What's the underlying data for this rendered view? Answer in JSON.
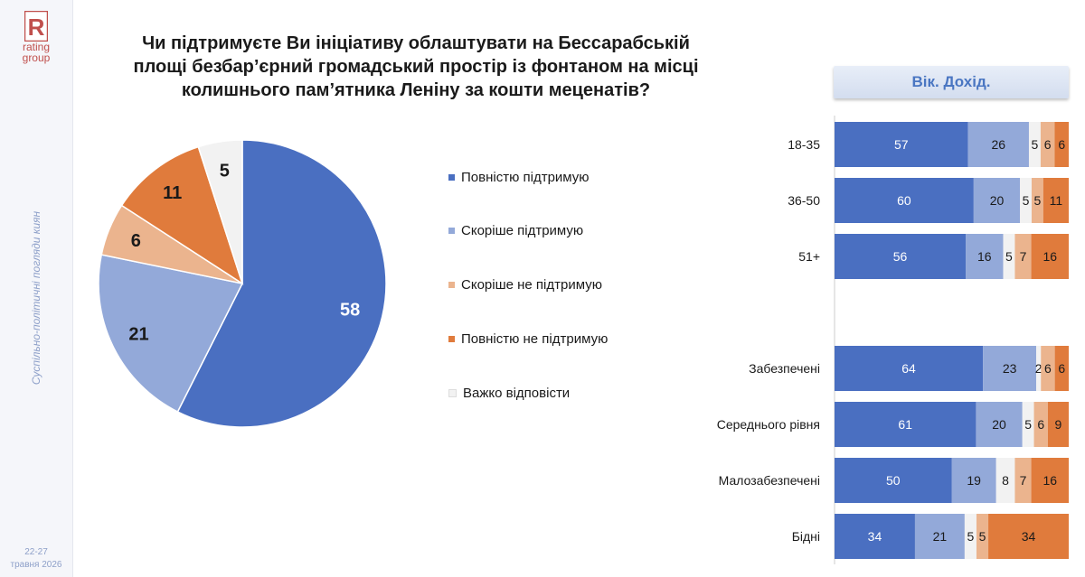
{
  "sidebar": {
    "logo_letter": "R",
    "logo_line1": "rating",
    "logo_line2": "group",
    "vertical_text": "Суспільно-політичні погляди киян",
    "date_line1": "22-27",
    "date_line2": "травня 2026"
  },
  "title_lines": [
    "Чи підтримуєте Ви ініціативу облаштувати на Бессарабській",
    "площі безбар’єрний громадський простір із фонтаном на місці",
    "колишнього пам’ятника Леніну за кошти меценатів?"
  ],
  "header_box": "Вік. Дохід.",
  "colors": {
    "full_support": "#4a6fc1",
    "rather_support": "#93a9d9",
    "rather_not": "#ebb48e",
    "full_not": "#e07b3c",
    "hard_to_say": "#f2f2f2"
  },
  "legend": [
    "Повністю підтримую",
    "Скоріше підтримую",
    "Скоріше не підтримую",
    "Повністю не підтримую",
    "Важко відповісти"
  ],
  "chart_data": [
    {
      "type": "pie",
      "categories": [
        "Повністю підтримую",
        "Скоріше підтримую",
        "Скоріше не підтримую",
        "Повністю не підтримую",
        "Важко відповісти"
      ],
      "values": [
        58,
        21,
        6,
        11,
        5
      ],
      "labels": [
        "58",
        "21",
        "6",
        "11",
        "5"
      ]
    },
    {
      "type": "bar",
      "orientation": "horizontal",
      "stacked": true,
      "categories": [
        "18-35",
        "36-50",
        "51+",
        "Забезпечені",
        "Середнього рівня",
        "Малозабезпечені",
        "Бідні"
      ],
      "series": [
        {
          "name": "Повністю підтримую",
          "values": [
            57,
            60,
            56,
            64,
            61,
            50,
            34
          ]
        },
        {
          "name": "Скоріше підтримую",
          "values": [
            26,
            20,
            16,
            23,
            20,
            19,
            21
          ]
        },
        {
          "name": "Важко відповісти",
          "values": [
            5,
            5,
            5,
            2,
            5,
            8,
            5
          ]
        },
        {
          "name": "Скоріше не підтримую",
          "values": [
            6,
            5,
            7,
            6,
            6,
            7,
            5
          ]
        },
        {
          "name": "Повністю не підтримую",
          "values": [
            6,
            11,
            16,
            6,
            9,
            16,
            34
          ]
        }
      ]
    }
  ]
}
